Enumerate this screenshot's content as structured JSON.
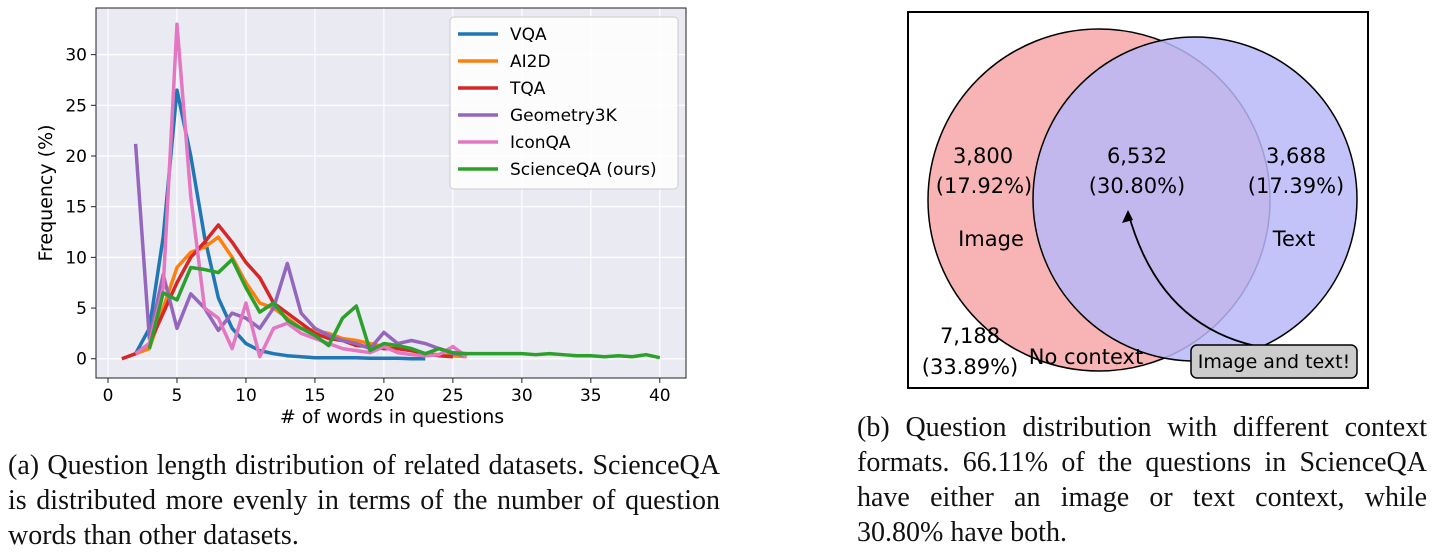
{
  "chart_data": {
    "type": "line",
    "xlabel": "# of words in questions",
    "ylabel": "Frequency (%)",
    "x": [
      1,
      2,
      3,
      4,
      5,
      6,
      7,
      8,
      9,
      10,
      11,
      12,
      13,
      14,
      15,
      16,
      17,
      18,
      19,
      20,
      21,
      22,
      23,
      24,
      25,
      26,
      27,
      28,
      29,
      30,
      31,
      32,
      33,
      34,
      35,
      36,
      37,
      38,
      39,
      40
    ],
    "series": [
      {
        "name": "VQA",
        "color": "#1f77b4",
        "values": [
          null,
          0.5,
          3,
          12,
          26.5,
          20,
          12,
          6,
          3,
          1.5,
          0.8,
          0.5,
          0.3,
          0.2,
          0.1,
          0.1,
          0.1,
          0.1,
          0.05,
          0.05,
          0.05,
          0,
          0,
          null,
          null,
          null,
          null,
          null,
          null,
          null,
          null,
          null,
          null,
          null,
          null,
          null,
          null,
          null,
          null,
          null
        ]
      },
      {
        "name": "AI2D",
        "color": "#ff7f0e",
        "values": [
          null,
          0.5,
          1,
          5,
          9,
          10.5,
          11,
          12,
          10,
          7.5,
          5.5,
          5,
          4,
          3,
          2.8,
          2.5,
          2,
          1.8,
          1.5,
          1.2,
          1,
          0.8,
          0.5,
          0.4,
          0.3,
          0.2,
          null,
          null,
          null,
          null,
          null,
          null,
          null,
          null,
          null,
          null,
          null,
          null,
          null,
          null
        ]
      },
      {
        "name": "TQA",
        "color": "#d62728",
        "values": [
          0,
          0.5,
          1.5,
          4.5,
          7.5,
          10,
          11.5,
          13.2,
          11.5,
          9.5,
          8,
          5.5,
          4.5,
          3.5,
          2.5,
          2,
          1.8,
          1.3,
          1.2,
          1,
          1,
          0.8,
          0.5,
          0.3,
          0.2,
          null,
          null,
          null,
          null,
          null,
          null,
          null,
          null,
          null,
          null,
          null,
          null,
          null,
          null,
          null
        ]
      },
      {
        "name": "Geometry3K",
        "color": "#9467bd",
        "values": [
          null,
          21.2,
          2,
          8.3,
          3,
          6.4,
          5,
          2.8,
          4.5,
          4,
          3,
          5,
          9.4,
          4.5,
          3,
          2.3,
          1.8,
          1.5,
          1,
          2.6,
          1.5,
          1.8,
          1.5,
          1,
          0.5,
          0.3,
          null,
          null,
          null,
          null,
          null,
          null,
          null,
          null,
          null,
          null,
          null,
          null,
          null,
          null
        ]
      },
      {
        "name": "IconQA",
        "color": "#e377c2",
        "values": [
          null,
          0.5,
          1.5,
          7,
          33,
          16,
          5,
          4,
          1,
          5.5,
          0.2,
          3,
          3.5,
          2.5,
          2,
          1.5,
          1,
          0.8,
          0.6,
          1.2,
          0.6,
          0.4,
          0.3,
          0.4,
          1.2,
          0.2,
          null,
          null,
          null,
          null,
          null,
          null,
          null,
          null,
          null,
          null,
          null,
          null,
          null,
          null
        ]
      },
      {
        "name": "ScienceQA (ours)",
        "color": "#2ca02c",
        "values": [
          null,
          null,
          1,
          6.5,
          5.8,
          9,
          8.8,
          8.5,
          9.8,
          7,
          4.6,
          5.5,
          3.8,
          3,
          2.3,
          1.3,
          4,
          5.2,
          0.8,
          1.5,
          1.3,
          1,
          0.5,
          1,
          0.6,
          0.5,
          0.5,
          0.5,
          0.5,
          0.5,
          0.4,
          0.5,
          0.4,
          0.3,
          0.3,
          0.2,
          0.3,
          0.2,
          0.4,
          0.1
        ]
      }
    ],
    "xlim": [
      -0.87,
      41.9
    ],
    "ylim": [
      -1.9,
      34.6
    ],
    "xticks": [
      0,
      5,
      10,
      15,
      20,
      25,
      30,
      35,
      40
    ],
    "yticks": [
      0,
      5,
      10,
      15,
      20,
      25,
      30
    ],
    "grid": true,
    "legend": "upper right"
  },
  "venn": {
    "left": {
      "count": "3,800",
      "percent": "(17.92%)",
      "label": "Image"
    },
    "both": {
      "count": "6,532",
      "percent": "(30.80%)"
    },
    "right": {
      "count": "3,688",
      "percent": "(17.39%)",
      "label": "Text"
    },
    "outside": {
      "count": "7,188",
      "percent": "(33.89%)",
      "label": "No context"
    },
    "callout": "Image and text!"
  },
  "captions": {
    "a": "(a) Question length distribution of related datasets. ScienceQA is distributed more evenly in terms of the number of question words than other datasets.",
    "b": "(b) Question distribution with different context formats. 66.11% of the questions in ScienceQA have either an image or text context, while 30.80% have both."
  }
}
